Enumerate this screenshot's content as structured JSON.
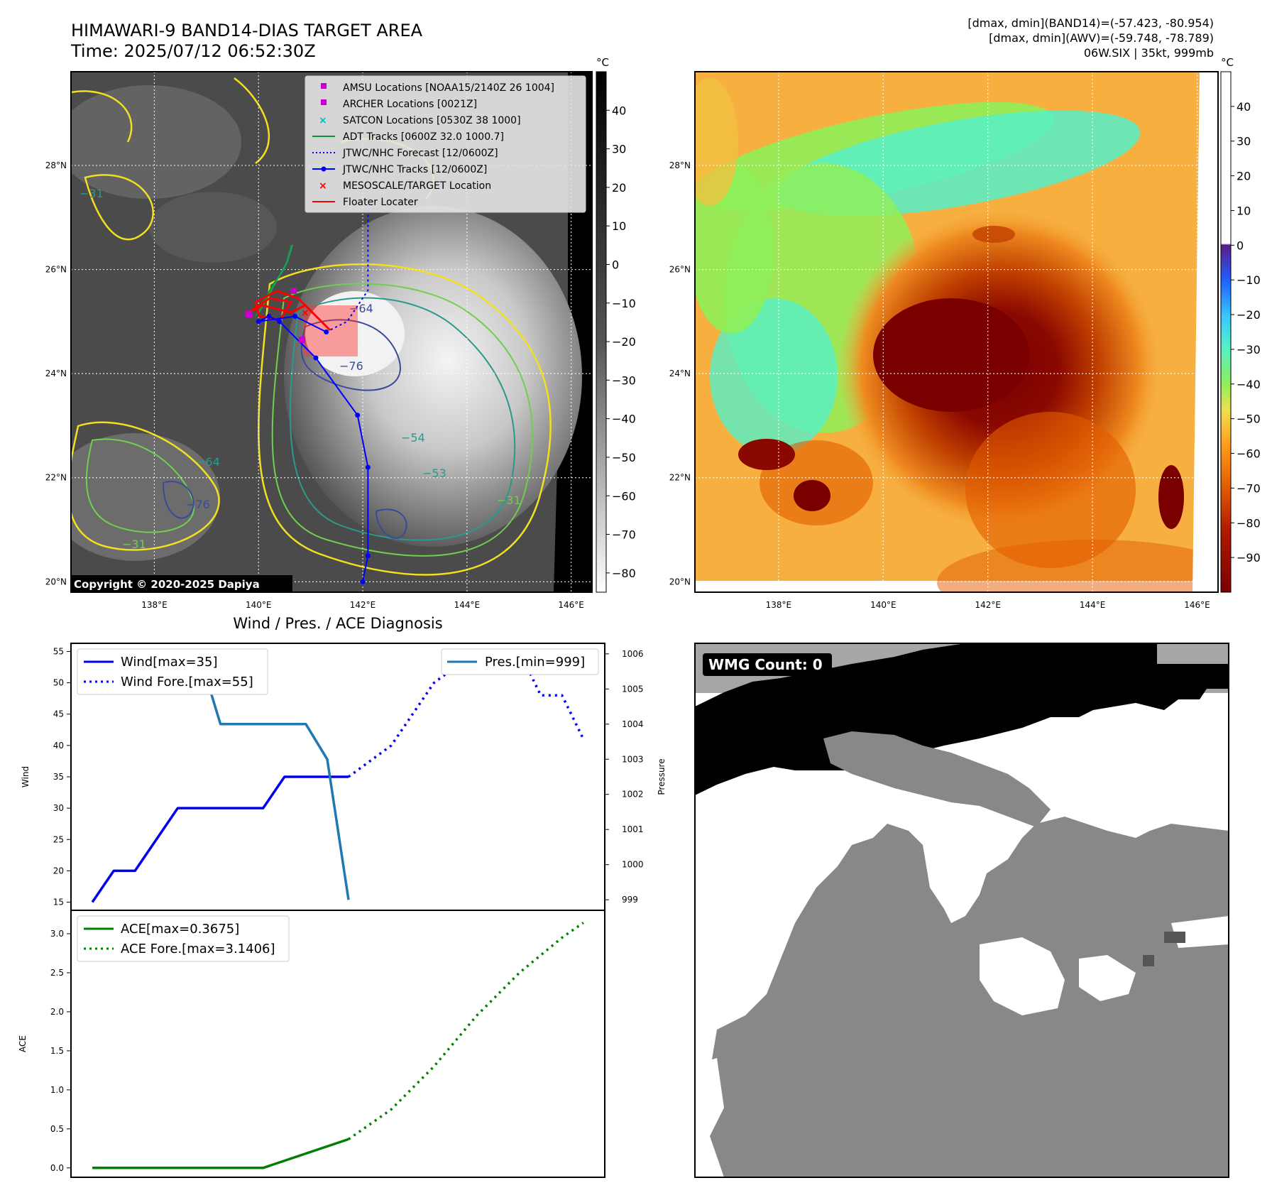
{
  "header": {
    "title": "HIMAWARI-9 BAND14-DIAS TARGET AREA",
    "time": "Time: 2025/07/12 06:52:30Z",
    "info_line1": "[dmax, dmin](BAND14)=(-57.423, -80.954)",
    "info_line2": "[dmax, dmin](AWV)=(-59.748, -78.789)",
    "info_line3": "06W.SIX | 35kt, 999mb"
  },
  "copyright": "Copyright © 2020-2025 Dapiya",
  "colors": {
    "wind": "#0000ee",
    "pressure": "#1f77b4",
    "ace": "#008000",
    "track": "#0000ff",
    "adt": "#0a8f3a",
    "locator": "#ff0000",
    "amsu": "#cc00cc",
    "satcon": "#00bbbb"
  },
  "map_axes": {
    "lon_ticks": [
      "138°E",
      "140°E",
      "142°E",
      "144°E",
      "146°E"
    ],
    "lat_ticks": [
      "28°N",
      "26°N",
      "24°N",
      "22°N",
      "20°N"
    ],
    "lon_values": [
      138,
      140,
      142,
      144,
      146
    ],
    "lat_values": [
      28,
      26,
      24,
      22,
      20
    ],
    "lon_range": [
      136.4,
      146.4
    ],
    "lat_range": [
      19.8,
      29.8
    ]
  },
  "colorbar_ir": {
    "unit": "°C",
    "ticks": [
      "40",
      "30",
      "20",
      "10",
      "0",
      "−10",
      "−20",
      "−30",
      "−40",
      "−50",
      "−60",
      "−70",
      "−80"
    ],
    "values": [
      40,
      30,
      20,
      10,
      0,
      -10,
      -20,
      -30,
      -40,
      -50,
      -60,
      -70,
      -80
    ],
    "range": [
      -85,
      50
    ]
  },
  "colorbar_color": {
    "unit": "°C",
    "ticks": [
      "40",
      "30",
      "20",
      "10",
      "0",
      "−10",
      "−20",
      "−30",
      "−40",
      "−50",
      "−60",
      "−70",
      "−80",
      "−90"
    ],
    "values": [
      40,
      30,
      20,
      10,
      0,
      -10,
      -20,
      -30,
      -40,
      -50,
      -60,
      -70,
      -80,
      -90
    ],
    "range": [
      -100,
      50
    ]
  },
  "legend": {
    "amsu": "AMSU Locations [NOAA15/2140Z 26 1004]",
    "archer": "ARCHER Locations [0021Z]",
    "satcon": "SATCON Locations [0530Z 38 1000]",
    "adt": "ADT Tracks [0600Z 32.0 1000.7]",
    "forecast": "JTWC/NHC Forecast [12/0600Z]",
    "tracks": "JTWC/NHC Tracks [12/0600Z]",
    "mesoscale": "MESOSCALE/TARGET Location",
    "floater": "Floater Locater"
  },
  "contour_labels": [
    "−64",
    "−76",
    "−31",
    "−54",
    "−76",
    "−64",
    "−31",
    "−53",
    "−31"
  ],
  "track_points": [
    {
      "lon": 142.0,
      "lat": 20.0
    },
    {
      "lon": 142.1,
      "lat": 20.5
    },
    {
      "lon": 142.1,
      "lat": 22.2
    },
    {
      "lon": 141.9,
      "lat": 23.2
    },
    {
      "lon": 141.1,
      "lat": 24.3
    },
    {
      "lon": 140.4,
      "lat": 25.0
    },
    {
      "lon": 140.2,
      "lat": 25.1
    },
    {
      "lon": 140.0,
      "lat": 25.0
    },
    {
      "lon": 140.7,
      "lat": 25.1
    },
    {
      "lon": 141.3,
      "lat": 24.8
    }
  ],
  "forecast_points": [
    {
      "lon": 141.3,
      "lat": 24.8
    },
    {
      "lon": 141.7,
      "lat": 25.0
    },
    {
      "lon": 142.1,
      "lat": 25.6
    },
    {
      "lon": 142.1,
      "lat": 26.4
    },
    {
      "lon": 142.1,
      "lat": 27.4
    },
    {
      "lon": 142.0,
      "lat": 28.3
    }
  ],
  "chart_data": [
    {
      "type": "line",
      "title": "Wind / Pres. / ACE Diagnosis",
      "xlabel": "",
      "ylabel": "Wind",
      "ylabel_right": "Pressure",
      "ylim": [
        13.7,
        56.3
      ],
      "ylim_right": [
        998.7,
        1006.3
      ],
      "yticks": [
        "55",
        "50",
        "45",
        "40",
        "35",
        "30",
        "25",
        "20",
        "15"
      ],
      "yticks_right": [
        "1006",
        "1005",
        "1004",
        "1003",
        "1002",
        "1001",
        "1000",
        "999"
      ],
      "xlim": [
        -1,
        24
      ],
      "series": [
        {
          "name": "Wind[max=35]",
          "style": "solid",
          "x": [
            0,
            1,
            2,
            4,
            8,
            9,
            11,
            12
          ],
          "values": [
            15,
            20,
            20,
            30,
            30,
            35,
            35,
            35
          ]
        },
        {
          "name": "Wind Fore.[max=55]",
          "style": "dotted",
          "x": [
            12,
            14,
            16,
            18,
            20,
            21,
            22,
            23
          ],
          "values": [
            35,
            40,
            50,
            55,
            55,
            48,
            48,
            41
          ]
        },
        {
          "name": "Pres.[min=999]",
          "style": "solid",
          "axis": "right",
          "x": [
            0,
            5,
            6,
            10,
            11,
            12
          ],
          "values": [
            1006,
            1006,
            1004,
            1004,
            1003,
            999
          ]
        }
      ]
    },
    {
      "type": "line",
      "xlabel": "",
      "ylabel": "ACE",
      "ylim": [
        -0.12,
        3.3
      ],
      "yticks": [
        "3.0",
        "2.5",
        "2.0",
        "1.5",
        "1.0",
        "0.5",
        "0.0"
      ],
      "xlim": [
        -1,
        24
      ],
      "series": [
        {
          "name": "ACE[max=0.3675]",
          "style": "solid",
          "x": [
            0,
            8,
            12
          ],
          "values": [
            0.0,
            0.0,
            0.3675
          ]
        },
        {
          "name": "ACE Fore.[max=3.1406]",
          "style": "dotted",
          "x": [
            12,
            14,
            16,
            18,
            20,
            22,
            23
          ],
          "values": [
            0.3675,
            0.75,
            1.3,
            1.95,
            2.5,
            2.95,
            3.1406
          ]
        }
      ]
    }
  ],
  "wmg": {
    "label": "WMG Count: 0"
  }
}
